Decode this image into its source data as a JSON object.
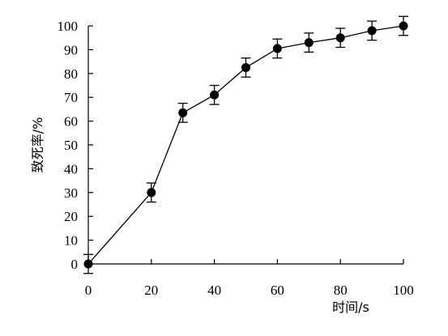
{
  "chart_data": {
    "type": "line",
    "title": "",
    "xlabel": "时间/s",
    "ylabel": "致死率/%",
    "xlim": [
      0,
      100
    ],
    "ylim": [
      0,
      100
    ],
    "xticks": [
      0,
      20,
      40,
      60,
      80,
      100
    ],
    "yticks": [
      0,
      10,
      20,
      30,
      40,
      50,
      60,
      70,
      80,
      90,
      100
    ],
    "grid": false,
    "legend": "none",
    "series": [
      {
        "x": [
          0,
          20,
          30,
          40,
          50,
          60,
          70,
          80,
          90,
          100
        ],
        "y": [
          0,
          30,
          63.5,
          71,
          82.5,
          90.5,
          93,
          95,
          98,
          100
        ],
        "error": [
          4,
          4,
          4,
          4,
          4,
          4,
          4,
          4,
          4,
          4
        ],
        "color": "#000000",
        "marker": "circle"
      }
    ]
  }
}
